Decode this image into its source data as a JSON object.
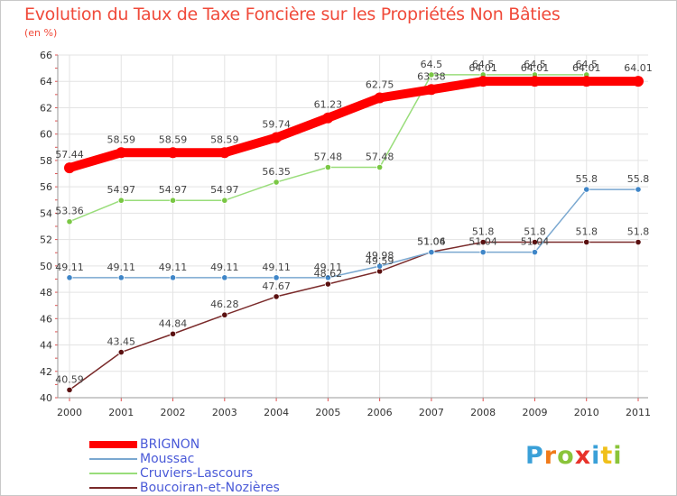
{
  "chart_data": {
    "type": "line",
    "title": "Evolution du Taux de Taxe Foncière sur les Propriétés Non Bâties",
    "subtitle": "(en %)",
    "ylim": [
      40,
      66
    ],
    "yticks": [
      "40",
      "42",
      "44",
      "46",
      "48",
      "50",
      "52",
      "54",
      "56",
      "58",
      "60",
      "62",
      "64",
      "66"
    ],
    "categories": [
      "2000",
      "2001",
      "2002",
      "2003",
      "2004",
      "2005",
      "2006",
      "2007",
      "2008",
      "2009",
      "2010",
      "2011"
    ],
    "series": [
      {
        "name": "BRIGNON",
        "color": "#ff0000",
        "marker": "#ff0000",
        "values": [
          57.44,
          58.59,
          58.59,
          58.59,
          59.74,
          61.23,
          62.75,
          63.38,
          64.01,
          64.01,
          64.01,
          64.01
        ],
        "labels": [
          "57.44",
          "58.59",
          "58.59",
          "58.59",
          "59.74",
          "61.23",
          "62.75",
          "63.38",
          "64.01",
          "64.01",
          "64.01",
          "64.01"
        ]
      },
      {
        "name": "Moussac",
        "color": "#7aa8d0",
        "marker": "#3f86c8",
        "values": [
          49.11,
          49.11,
          49.11,
          49.11,
          49.11,
          49.11,
          49.98,
          51.04,
          51.04,
          51.04,
          55.8,
          55.8
        ],
        "labels": [
          "49.11",
          "49.11",
          "49.11",
          "49.11",
          "49.11",
          "49.11",
          "49.98",
          "51.04",
          "51.04",
          "51.04",
          "55.8",
          "55.8"
        ]
      },
      {
        "name": "Cruviers-Lascours",
        "color": "#99dd7a",
        "marker": "#7ac744",
        "values": [
          53.36,
          54.97,
          54.97,
          54.97,
          56.35,
          57.48,
          57.48,
          64.5,
          64.5,
          64.5,
          64.5,
          null
        ],
        "labels": [
          "53.36",
          "54.97",
          "54.97",
          "54.97",
          "56.35",
          "57.48",
          "57.48",
          "64.5",
          "64.5",
          "64.5",
          "64.5",
          ""
        ]
      },
      {
        "name": "Boucoiran-et-Nozières",
        "color": "#7a2a2a",
        "marker": "#5a1010",
        "values": [
          40.59,
          43.45,
          44.84,
          46.28,
          47.67,
          48.62,
          49.59,
          51.06,
          51.8,
          51.8,
          51.8,
          51.8
        ],
        "labels": [
          "40.59",
          "43.45",
          "44.84",
          "46.28",
          "47.67",
          "48.62",
          "49.59",
          "51.06",
          "51.8",
          "51.8",
          "51.8",
          "51.8"
        ]
      }
    ],
    "grid": true,
    "legend": "bottom-left"
  },
  "logo": {
    "text": "Proxiti",
    "letters": [
      "P",
      "r",
      "o",
      "x",
      "i",
      "t",
      "i"
    ],
    "colors": [
      "#3aa0d8",
      "#f07a1a",
      "#8ac43a",
      "#e8322a",
      "#3aa0d8",
      "#f0c01a",
      "#8ac43a"
    ]
  }
}
